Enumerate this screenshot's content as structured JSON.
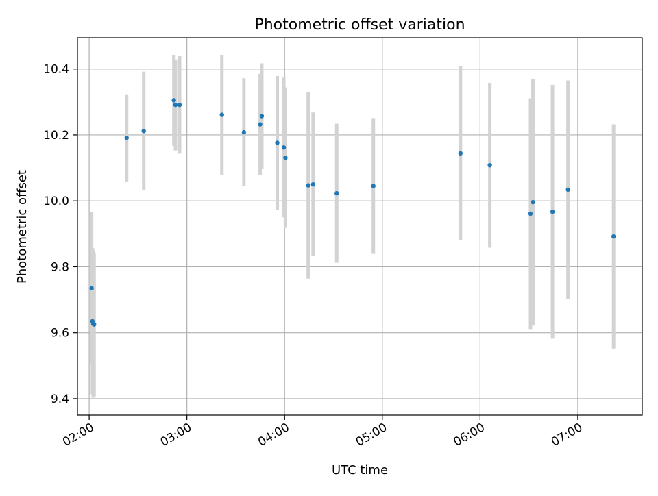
{
  "chart_data": {
    "type": "scatter",
    "title": "Photometric offset variation",
    "xlabel": "UTC time",
    "ylabel": "Photometric offset",
    "x_tick_labels": [
      "02:00",
      "03:00",
      "04:00",
      "05:00",
      "06:00",
      "07:00"
    ],
    "y_tick_labels": [
      "9.4",
      "9.6",
      "9.8",
      "10.0",
      "10.2",
      "10.4"
    ],
    "xlim": [
      "01:52:48",
      "07:39:36"
    ],
    "ylim": [
      9.35,
      10.495
    ],
    "grid": true,
    "point_color": "#1f77b4",
    "errorbar_color": "#d3d3d3",
    "points": [
      {
        "x": "02:01:30",
        "y": 9.735,
        "yerr": 0.232
      },
      {
        "x": "02:02:00",
        "y": 9.635,
        "yerr": 0.222
      },
      {
        "x": "02:02:30",
        "y": 9.627,
        "yerr": 0.224
      },
      {
        "x": "02:03:00",
        "y": 9.625,
        "yerr": 0.218
      },
      {
        "x": "02:23:00",
        "y": 10.191,
        "yerr": 0.132
      },
      {
        "x": "02:33:30",
        "y": 10.212,
        "yerr": 0.18
      },
      {
        "x": "02:52:00",
        "y": 10.305,
        "yerr": 0.138
      },
      {
        "x": "02:53:00",
        "y": 10.291,
        "yerr": 0.138
      },
      {
        "x": "02:55:30",
        "y": 10.291,
        "yerr": 0.148
      },
      {
        "x": "03:21:30",
        "y": 10.261,
        "yerr": 0.182
      },
      {
        "x": "03:35:00",
        "y": 10.208,
        "yerr": 0.164
      },
      {
        "x": "03:45:00",
        "y": 10.232,
        "yerr": 0.153
      },
      {
        "x": "03:46:00",
        "y": 10.257,
        "yerr": 0.16
      },
      {
        "x": "03:55:30",
        "y": 10.176,
        "yerr": 0.203
      },
      {
        "x": "03:59:30",
        "y": 10.162,
        "yerr": 0.212
      },
      {
        "x": "04:00:30",
        "y": 10.131,
        "yerr": 0.213
      },
      {
        "x": "04:14:30",
        "y": 10.047,
        "yerr": 0.283
      },
      {
        "x": "04:17:30",
        "y": 10.05,
        "yerr": 0.218
      },
      {
        "x": "04:32:00",
        "y": 10.023,
        "yerr": 0.211
      },
      {
        "x": "04:54:30",
        "y": 10.045,
        "yerr": 0.206
      },
      {
        "x": "05:48:00",
        "y": 10.144,
        "yerr": 0.264
      },
      {
        "x": "06:06:00",
        "y": 10.108,
        "yerr": 0.25
      },
      {
        "x": "06:31:00",
        "y": 9.961,
        "yerr": 0.35
      },
      {
        "x": "06:32:30",
        "y": 9.996,
        "yerr": 0.374
      },
      {
        "x": "06:44:30",
        "y": 9.967,
        "yerr": 0.385
      },
      {
        "x": "06:54:00",
        "y": 10.034,
        "yerr": 0.331
      },
      {
        "x": "07:22:00",
        "y": 9.892,
        "yerr": 0.34
      }
    ]
  }
}
